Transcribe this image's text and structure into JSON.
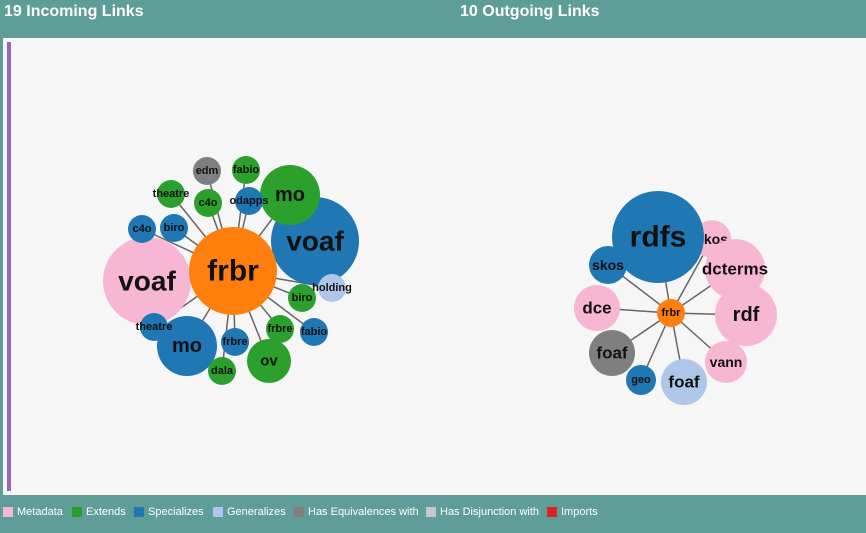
{
  "headers": {
    "incoming": "19 Incoming Links",
    "outgoing": "10 Outgoing Links"
  },
  "legend": [
    {
      "label": "Metadata",
      "color": "#f7b6d2"
    },
    {
      "label": "Extends",
      "color": "#2ca02c"
    },
    {
      "label": "Specializes",
      "color": "#1f77b4"
    },
    {
      "label": "Generalizes",
      "color": "#aec7e8"
    },
    {
      "label": "Has Equivalences with",
      "color": "#7f7f7f"
    },
    {
      "label": "Has Disjunction with",
      "color": "#c7c7c7"
    },
    {
      "label": "Imports",
      "color": "#d62728"
    }
  ],
  "incoming_graph": {
    "center": {
      "label": "frbr",
      "color": "#ff7f0e"
    },
    "nodes": [
      {
        "label": "voaf",
        "color": "#f7b6d2"
      },
      {
        "label": "voaf",
        "color": "#1f77b4"
      },
      {
        "label": "mo",
        "color": "#2ca02c"
      },
      {
        "label": "mo",
        "color": "#1f77b4"
      },
      {
        "label": "edm",
        "color": "#7f7f7f"
      },
      {
        "label": "fabio",
        "color": "#2ca02c"
      },
      {
        "label": "theatre",
        "color": "#2ca02c"
      },
      {
        "label": "c4o",
        "color": "#2ca02c"
      },
      {
        "label": "odapps",
        "color": "#1f77b4"
      },
      {
        "label": "c4o",
        "color": "#1f77b4"
      },
      {
        "label": "biro",
        "color": "#1f77b4"
      },
      {
        "label": "holding",
        "color": "#aec7e8"
      },
      {
        "label": "biro",
        "color": "#2ca02c"
      },
      {
        "label": "fabio",
        "color": "#1f77b4"
      },
      {
        "label": "frbre",
        "color": "#2ca02c"
      },
      {
        "label": "theatre",
        "color": "#1f77b4"
      },
      {
        "label": "frbre",
        "color": "#1f77b4"
      },
      {
        "label": "ov",
        "color": "#2ca02c"
      },
      {
        "label": "dala",
        "color": "#2ca02c"
      }
    ]
  },
  "outgoing_graph": {
    "center": {
      "label": "frbr",
      "color": "#ff7f0e"
    },
    "nodes": [
      {
        "label": "skos",
        "color": "#f7b6d2"
      },
      {
        "label": "rdfs",
        "color": "#1f77b4"
      },
      {
        "label": "dcterms",
        "color": "#f7b6d2"
      },
      {
        "label": "skos",
        "color": "#1f77b4"
      },
      {
        "label": "dce",
        "color": "#f7b6d2"
      },
      {
        "label": "rdf",
        "color": "#f7b6d2"
      },
      {
        "label": "foaf",
        "color": "#7f7f7f"
      },
      {
        "label": "vann",
        "color": "#f7b6d2"
      },
      {
        "label": "geo",
        "color": "#1f77b4"
      },
      {
        "label": "foaf",
        "color": "#aec7e8"
      }
    ]
  }
}
